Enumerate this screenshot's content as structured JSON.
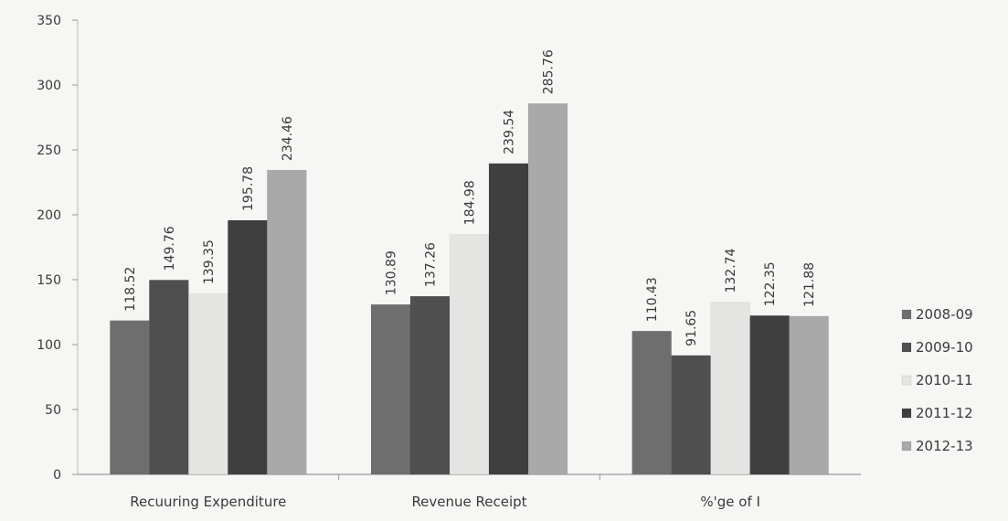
{
  "chart_data": {
    "type": "bar",
    "categories": [
      "Recuuring Expenditure",
      "Revenue Receipt",
      "%'ge of I"
    ],
    "series": [
      {
        "name": "2008-09",
        "values": [
          118.52,
          130.89,
          110.43
        ],
        "color": "#6e6e6e"
      },
      {
        "name": "2009-10",
        "values": [
          149.76,
          137.26,
          91.65
        ],
        "color": "#4f4f4f"
      },
      {
        "name": "2010-11",
        "values": [
          139.35,
          184.98,
          132.74
        ],
        "color": "#e4e4e2"
      },
      {
        "name": "2011-12",
        "values": [
          195.78,
          239.54,
          122.35
        ],
        "color": "#3f3f3f"
      },
      {
        "name": "2012-13",
        "values": [
          234.46,
          285.76,
          121.88
        ],
        "color": "#a9a9a9"
      }
    ],
    "ylim": [
      0,
      350
    ],
    "yticks": [
      "0",
      "50",
      "100",
      "150",
      "200",
      "250",
      "300",
      "350"
    ],
    "data_labels": [
      [
        "118.52",
        "130.89",
        "110.43"
      ],
      [
        "149.76",
        "137.26",
        "91.65"
      ],
      [
        "139.35",
        "184.98",
        "132.74"
      ],
      [
        "195.78",
        "239.54",
        "122.35"
      ],
      [
        "234.46",
        "285.76",
        "121.88"
      ]
    ],
    "legend_position": "right",
    "grid": false
  }
}
